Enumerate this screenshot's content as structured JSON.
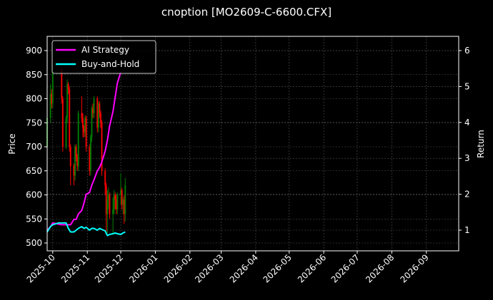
{
  "title": "cnoption [MO2609-C-6600.CFX]",
  "colors": {
    "background": "#000000",
    "ai_strategy": "#ff00ff",
    "buy_and_hold": "#00ffff",
    "candle_up": "#008000",
    "candle_down": "#ff0000",
    "grid": "#555555",
    "axis": "#ffffff"
  },
  "legend": {
    "items": [
      {
        "label": "AI Strategy",
        "color": "#ff00ff"
      },
      {
        "label": "Buy-and-Hold",
        "color": "#00ffff"
      }
    ]
  },
  "chart_data": {
    "type": "line",
    "title": "cnoption [MO2609-C-6600.CFX]",
    "xlabel": "",
    "ylabel": "Price",
    "y2label": "Return",
    "ylim": [
      485,
      930
    ],
    "y2lim": [
      0.55,
      6.4
    ],
    "xlim": [
      "2025-09-26",
      "2026-09-30"
    ],
    "grid": true,
    "legend_position": "upper left",
    "x_ticks": [
      "2025-10",
      "2025-11",
      "2025-12",
      "2026-01",
      "2026-02",
      "2026-03",
      "2026-04",
      "2026-05",
      "2026-06",
      "2026-07",
      "2026-08",
      "2026-09"
    ],
    "y_ticks": [
      500,
      550,
      600,
      650,
      700,
      750,
      800,
      850,
      900
    ],
    "y2_ticks": [
      1,
      2,
      3,
      4,
      5,
      6
    ],
    "candlestick_price": {
      "description": "Daily OHLC candles (green = up, red = down), approx readings",
      "dates": [
        "2025-09-26",
        "2025-09-29",
        "2025-09-30",
        "2025-10-01",
        "2025-10-09",
        "2025-10-10",
        "2025-10-13",
        "2025-10-14",
        "2025-10-15",
        "2025-10-16",
        "2025-10-17",
        "2025-10-20",
        "2025-10-21",
        "2025-10-22",
        "2025-10-23",
        "2025-10-24",
        "2025-10-27",
        "2025-10-28",
        "2025-10-29",
        "2025-10-30",
        "2025-10-31",
        "2025-11-03",
        "2025-11-04",
        "2025-11-05",
        "2025-11-06",
        "2025-11-07",
        "2025-11-10",
        "2025-11-11",
        "2025-11-12",
        "2025-11-13",
        "2025-11-14",
        "2025-11-17",
        "2025-11-18",
        "2025-11-19",
        "2025-11-20",
        "2025-11-21",
        "2025-11-24",
        "2025-11-25",
        "2025-11-26",
        "2025-11-27",
        "2025-11-28",
        "2025-12-01",
        "2025-12-02",
        "2025-12-03",
        "2025-12-04",
        "2025-12-05"
      ],
      "open": [
        700,
        760,
        810,
        790,
        860,
        800,
        700,
        760,
        830,
        820,
        700,
        660,
        640,
        700,
        680,
        660,
        770,
        760,
        740,
        730,
        760,
        700,
        650,
        720,
        780,
        770,
        800,
        740,
        790,
        770,
        750,
        650,
        620,
        560,
        590,
        600,
        560,
        570,
        600,
        590,
        570,
        600,
        610,
        580,
        590,
        560
      ],
      "close": [
        760,
        810,
        790,
        860,
        800,
        700,
        760,
        830,
        820,
        700,
        660,
        640,
        700,
        680,
        660,
        770,
        760,
        740,
        730,
        760,
        700,
        650,
        720,
        780,
        770,
        800,
        740,
        790,
        770,
        750,
        650,
        620,
        560,
        590,
        600,
        560,
        570,
        600,
        590,
        570,
        600,
        610,
        580,
        590,
        560,
        620
      ],
      "high": [
        770,
        830,
        820,
        870,
        865,
        805,
        765,
        840,
        835,
        825,
        705,
        665,
        705,
        705,
        685,
        775,
        805,
        770,
        745,
        765,
        765,
        705,
        725,
        785,
        790,
        805,
        805,
        795,
        795,
        775,
        755,
        655,
        625,
        610,
        615,
        605,
        595,
        610,
        605,
        600,
        605,
        645,
        615,
        595,
        600,
        635
      ],
      "low": [
        690,
        750,
        780,
        780,
        790,
        690,
        695,
        750,
        810,
        690,
        620,
        620,
        630,
        670,
        650,
        650,
        750,
        720,
        720,
        720,
        690,
        640,
        640,
        710,
        760,
        760,
        730,
        730,
        760,
        740,
        640,
        600,
        520,
        520,
        570,
        550,
        520,
        560,
        570,
        560,
        560,
        580,
        570,
        560,
        540,
        545
      ]
    },
    "series": [
      {
        "name": "AI Strategy",
        "axis": "right",
        "color": "#ff00ff",
        "x": [
          "2025-09-26",
          "2025-09-29",
          "2025-10-01",
          "2025-10-09",
          "2025-10-13",
          "2025-10-15",
          "2025-10-17",
          "2025-10-20",
          "2025-10-22",
          "2025-10-24",
          "2025-10-27",
          "2025-10-29",
          "2025-10-31",
          "2025-11-03",
          "2025-11-05",
          "2025-11-07",
          "2025-11-10",
          "2025-11-12",
          "2025-11-14",
          "2025-11-17",
          "2025-11-19",
          "2025-11-21",
          "2025-11-24",
          "2025-11-26",
          "2025-11-28",
          "2025-12-01"
        ],
        "values": [
          1.0,
          1.1,
          1.2,
          1.15,
          1.15,
          1.15,
          1.15,
          1.3,
          1.3,
          1.45,
          1.55,
          1.75,
          2.0,
          2.05,
          2.25,
          2.4,
          2.65,
          2.75,
          2.9,
          3.2,
          3.5,
          3.9,
          4.3,
          4.7,
          5.1,
          5.4
        ]
      },
      {
        "name": "Buy-and-Hold",
        "axis": "right",
        "color": "#00ffff",
        "x": [
          "2025-09-26",
          "2025-09-29",
          "2025-10-01",
          "2025-10-06",
          "2025-10-09",
          "2025-10-13",
          "2025-10-15",
          "2025-10-17",
          "2025-10-20",
          "2025-10-22",
          "2025-10-24",
          "2025-10-27",
          "2025-10-29",
          "2025-10-31",
          "2025-11-03",
          "2025-11-05",
          "2025-11-07",
          "2025-11-10",
          "2025-11-12",
          "2025-11-14",
          "2025-11-17",
          "2025-11-19",
          "2025-11-21",
          "2025-11-24",
          "2025-11-26",
          "2025-11-28",
          "2025-12-01",
          "2025-12-03",
          "2025-12-05"
        ],
        "values": [
          0.95,
          1.1,
          1.15,
          1.2,
          1.2,
          1.2,
          1.05,
          0.95,
          0.95,
          1.0,
          1.05,
          1.1,
          1.05,
          1.08,
          1.0,
          1.05,
          1.05,
          1.0,
          1.05,
          1.02,
          0.98,
          0.85,
          0.88,
          0.9,
          0.92,
          0.9,
          0.88,
          0.92,
          0.95
        ]
      }
    ]
  }
}
